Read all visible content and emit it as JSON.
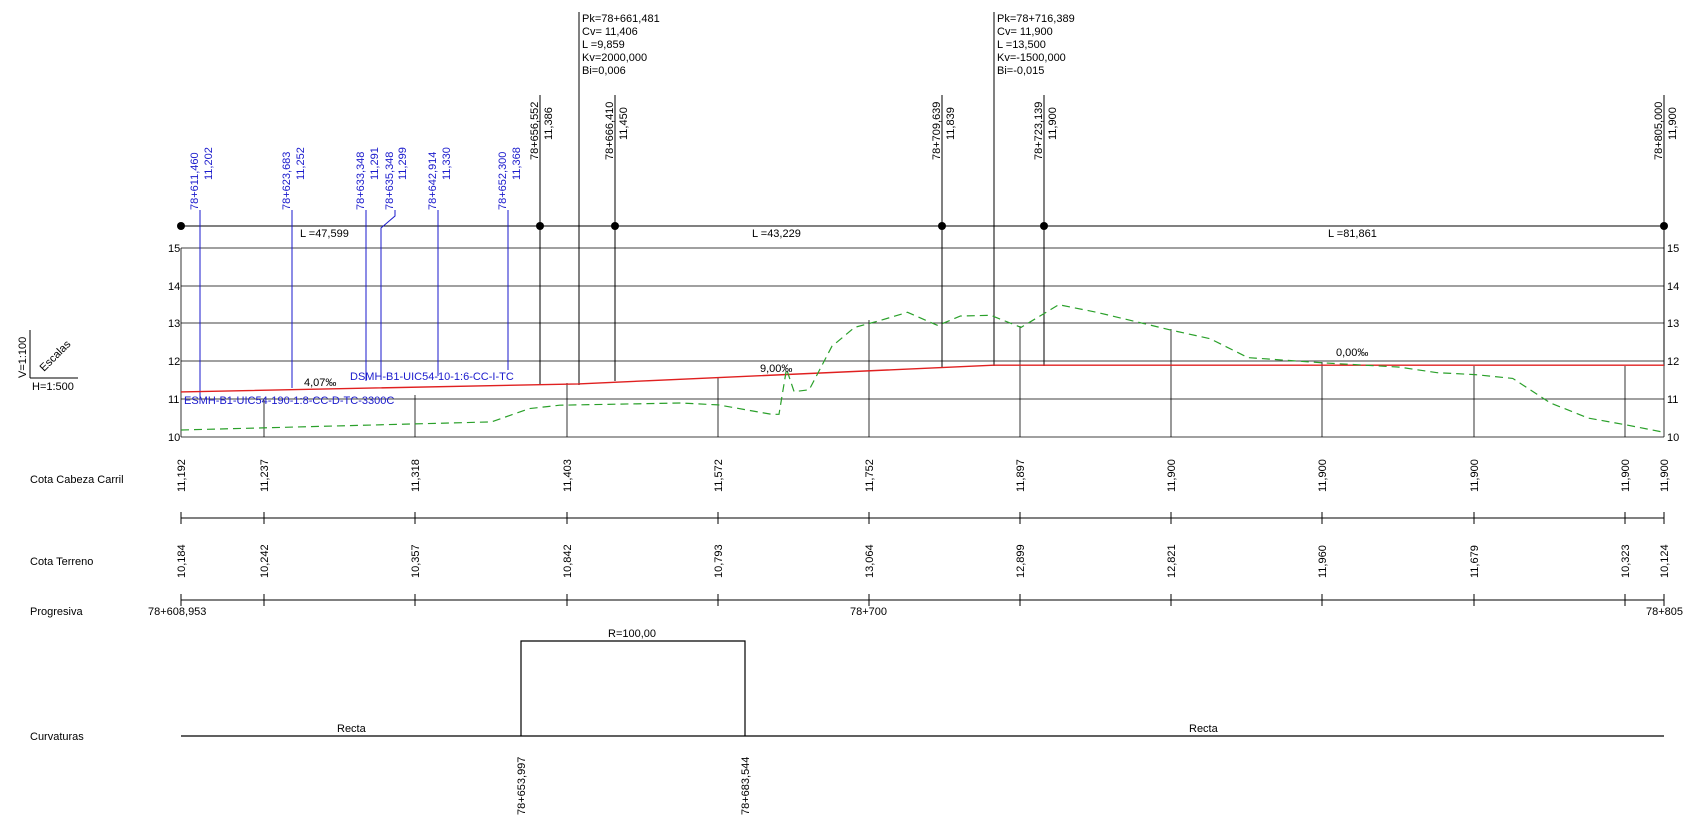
{
  "scales": {
    "vertical": "V=1:100",
    "horizontal": "H=1:500",
    "title": "Escalas"
  },
  "row_labels": {
    "cota_cabeza": "Cota Cabeza Carril",
    "cota_terreno": "Cota Terreno",
    "progresiva": "Progresiva",
    "curvaturas": "Curvaturas"
  },
  "y_axis_ticks": [
    "15",
    "14",
    "13",
    "12",
    "11",
    "10"
  ],
  "vertical_curves": [
    {
      "lines": [
        "Pk=78+661,481",
        "Cv=  11,406",
        "L =9,859",
        "Kv=2000,000",
        "Bi=0,006"
      ]
    },
    {
      "lines": [
        "Pk=78+716,389",
        "Cv=  11,900",
        "L =13,500",
        "Kv=-1500,000",
        "Bi=-0,015"
      ]
    }
  ],
  "rail_labels": [
    {
      "pk": "78+611,460",
      "cota": "11,202"
    },
    {
      "pk": "78+623,683",
      "cota": "11,252"
    },
    {
      "pk": "78+633,348",
      "cota": "11,291"
    },
    {
      "pk": "78+635,348",
      "cota": "11,299"
    },
    {
      "pk": "78+642,914",
      "cota": "11,330"
    },
    {
      "pk": "78+652,300",
      "cota": "11,368"
    }
  ],
  "point_labels": [
    {
      "pk": "78+656,552",
      "cota": "11,386"
    },
    {
      "pk": "78+666,410",
      "cota": "11,450"
    },
    {
      "pk": "78+709,639",
      "cota": "11,839"
    },
    {
      "pk": "78+723,139",
      "cota": "11,900"
    },
    {
      "pk": "78+805,000",
      "cota": "11,900"
    }
  ],
  "segment_lengths": [
    "L =47,599",
    "L =43,229",
    "L =81,861"
  ],
  "slopes": [
    "4,07‰",
    "9,00‰",
    "0,00‰"
  ],
  "device_labels": [
    "DSMH-B1-UIC54-10-1:6-CC-I-TC",
    "ESMH-B1-UIC54-190-1:8-CC-D-TC-3300C"
  ],
  "cota_cabeza_values": [
    "11,192",
    "11,237",
    "11,318",
    "11,403",
    "11,572",
    "11,752",
    "11,897",
    "11,900",
    "11,900",
    "11,900",
    "11,900",
    "11,900"
  ],
  "cota_terreno_values": [
    "10,184",
    "10,242",
    "10,357",
    "10,842",
    "10,793",
    "13,064",
    "12,899",
    "12,821",
    "11,960",
    "11,679",
    "10,323",
    "10,124"
  ],
  "progresiva_labels": [
    "78+608,953",
    "78+700",
    "78+805"
  ],
  "curvatura": {
    "radius": "R=100,00",
    "straight_label": "Recta",
    "start_pk": "78+653,997",
    "end_pk": "78+683,544"
  },
  "chart_data": {
    "type": "line",
    "xlabel": "Progresiva",
    "ylabel": "",
    "ylim": [
      10,
      15
    ],
    "xlim": [
      608.953,
      805
    ],
    "series": [
      {
        "name": "Cota Cabeza Carril",
        "x": [
          608.953,
          661.481,
          716.389,
          805
        ],
        "values": [
          11.192,
          11.406,
          11.9,
          11.9
        ],
        "color": "#e02020"
      },
      {
        "name": "Cota Terreno",
        "x": [
          608.953,
          650,
          655,
          659,
          670,
          675,
          680,
          687,
          688,
          689,
          690,
          692,
          695,
          698,
          701,
          705,
          709,
          712,
          716,
          720,
          725,
          730,
          735,
          740,
          745,
          750,
          760,
          770,
          775,
          780,
          785,
          790,
          795,
          800,
          805
        ],
        "values": [
          10.184,
          10.4,
          10.75,
          10.84,
          10.88,
          10.9,
          10.85,
          10.6,
          10.6,
          11.8,
          11.2,
          11.25,
          12.4,
          12.9,
          13.06,
          13.3,
          12.95,
          13.2,
          13.22,
          12.9,
          13.5,
          13.3,
          13.06,
          12.82,
          12.6,
          12.1,
          11.96,
          11.85,
          11.7,
          11.65,
          11.55,
          10.9,
          10.5,
          10.32,
          10.124
        ],
        "color": "#2aa02a"
      }
    ]
  },
  "colors": {
    "rail_line": "#e02020",
    "terrain_line": "#2aa02a",
    "labels_blue": "#1a1acc"
  }
}
